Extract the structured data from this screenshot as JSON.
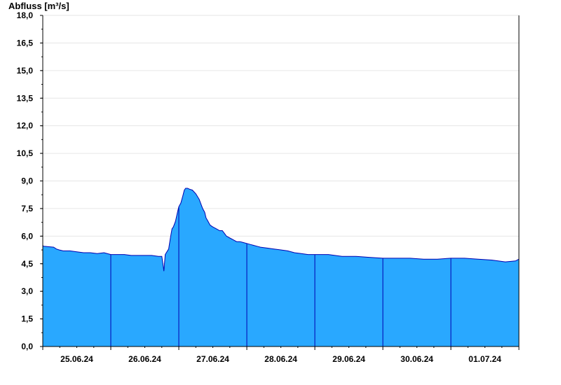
{
  "chart_data": {
    "type": "area",
    "ylabel": "Abfluss [m³/s]",
    "ylim": [
      0,
      18
    ],
    "yticks": [
      "0,0",
      "1,5",
      "3,0",
      "4,5",
      "6,0",
      "7,5",
      "9,0",
      "10,5",
      "12,0",
      "13,5",
      "15,0",
      "16,5",
      "18,0"
    ],
    "ytick_values": [
      0,
      1.5,
      3,
      4.5,
      6,
      7.5,
      9,
      10.5,
      12,
      13.5,
      15,
      16.5,
      18
    ],
    "xlim": [
      0,
      7
    ],
    "day_separators": [
      1,
      2,
      3,
      4,
      5,
      6
    ],
    "xtick_labels": [
      "25.06.24",
      "26.06.24",
      "27.06.24",
      "28.06.24",
      "29.06.24",
      "30.06.24",
      "01.07.24"
    ],
    "xtick_positions": [
      0.5,
      1.5,
      2.5,
      3.5,
      4.5,
      5.5,
      6.5
    ],
    "grid": true,
    "colors": {
      "fill": "#29a8ff",
      "line": "#0000b0",
      "separator": "#0000b0",
      "grid": "#e6e6e6"
    },
    "series": [
      {
        "values": {
          "x": [
            0,
            0.01,
            0.16,
            0.2,
            0.24,
            0.3,
            0.4,
            0.5,
            0.6,
            0.7,
            0.8,
            0.9,
            1.0,
            1.1,
            1.2,
            1.3,
            1.4,
            1.5,
            1.6,
            1.7,
            1.75,
            1.77,
            1.78,
            1.8,
            1.85,
            1.88,
            1.9,
            1.92,
            1.95,
            1.98,
            2.0,
            2.03,
            2.06,
            2.08,
            2.1,
            2.13,
            2.16,
            2.2,
            2.25,
            2.3,
            2.35,
            2.38,
            2.4,
            2.43,
            2.46,
            2.5,
            2.55,
            2.6,
            2.64,
            2.68,
            2.7,
            2.75,
            2.8,
            2.85,
            2.9,
            2.95,
            3.0,
            3.05,
            3.1,
            3.15,
            3.2,
            3.3,
            3.4,
            3.5,
            3.6,
            3.7,
            3.8,
            3.9,
            4.0,
            4.2,
            4.4,
            4.6,
            4.8,
            5.0,
            5.2,
            5.4,
            5.6,
            5.8,
            6.0,
            6.2,
            6.4,
            6.6,
            6.8,
            6.95,
            7.0
          ],
          "y": [
            5.5,
            5.45,
            5.4,
            5.3,
            5.25,
            5.2,
            5.2,
            5.15,
            5.1,
            5.1,
            5.05,
            5.1,
            5.0,
            5.0,
            5.0,
            4.95,
            4.95,
            4.95,
            4.95,
            4.9,
            4.9,
            4.4,
            4.1,
            5.0,
            5.3,
            6.0,
            6.4,
            6.5,
            6.8,
            7.3,
            7.6,
            7.8,
            8.2,
            8.5,
            8.6,
            8.6,
            8.55,
            8.5,
            8.3,
            8.0,
            7.5,
            7.3,
            7.0,
            6.8,
            6.6,
            6.5,
            6.4,
            6.3,
            6.3,
            6.1,
            6.0,
            5.9,
            5.8,
            5.7,
            5.7,
            5.65,
            5.6,
            5.55,
            5.5,
            5.45,
            5.4,
            5.35,
            5.3,
            5.25,
            5.2,
            5.1,
            5.05,
            5.0,
            5.0,
            5.0,
            4.9,
            4.9,
            4.85,
            4.8,
            4.8,
            4.8,
            4.75,
            4.75,
            4.8,
            4.8,
            4.75,
            4.7,
            4.6,
            4.65,
            4.75
          ]
        }
      }
    ]
  }
}
